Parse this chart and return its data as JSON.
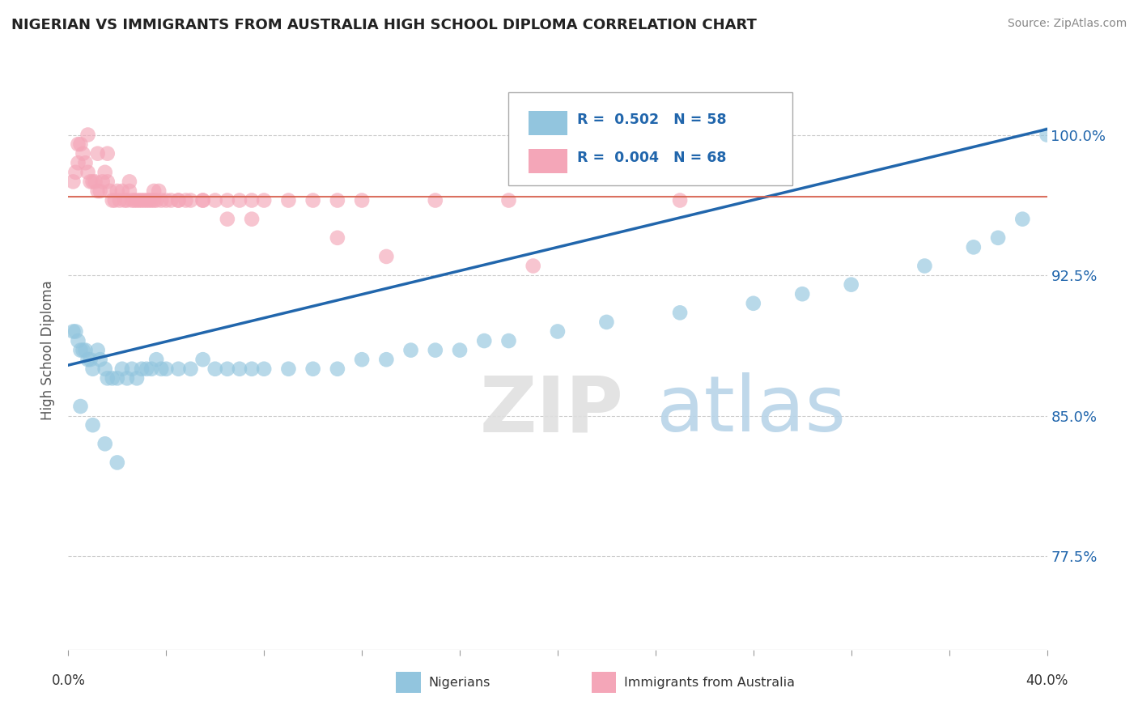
{
  "title": "NIGERIAN VS IMMIGRANTS FROM AUSTRALIA HIGH SCHOOL DIPLOMA CORRELATION CHART",
  "source": "Source: ZipAtlas.com",
  "ylabel": "High School Diploma",
  "ytick_values": [
    0.775,
    0.85,
    0.925,
    1.0
  ],
  "ytick_labels": [
    "77.5%",
    "85.0%",
    "92.5%",
    "100.0%"
  ],
  "xmin": 0.0,
  "xmax": 0.4,
  "ymin": 0.725,
  "ymax": 1.045,
  "legend_blue": "R =  0.502   N = 58",
  "legend_pink": "R =  0.004   N = 68",
  "legend_label_blue": "Nigerians",
  "legend_label_pink": "Immigrants from Australia",
  "blue_color": "#92c5de",
  "pink_color": "#f4a6b8",
  "blue_line_color": "#2166ac",
  "pink_line_color": "#d6604d",
  "watermark_zip": "ZIP",
  "watermark_atlas": "atlas",
  "nigerians_x": [
    0.002,
    0.003,
    0.004,
    0.005,
    0.006,
    0.007,
    0.008,
    0.009,
    0.01,
    0.012,
    0.013,
    0.015,
    0.016,
    0.018,
    0.02,
    0.022,
    0.024,
    0.026,
    0.028,
    0.03,
    0.032,
    0.034,
    0.036,
    0.038,
    0.04,
    0.045,
    0.05,
    0.055,
    0.06,
    0.065,
    0.07,
    0.075,
    0.08,
    0.09,
    0.1,
    0.11,
    0.12,
    0.13,
    0.14,
    0.15,
    0.16,
    0.17,
    0.18,
    0.2,
    0.22,
    0.25,
    0.28,
    0.3,
    0.32,
    0.35,
    0.37,
    0.38,
    0.39,
    0.4,
    0.005,
    0.01,
    0.015,
    0.02
  ],
  "nigerians_y": [
    0.895,
    0.895,
    0.89,
    0.885,
    0.885,
    0.885,
    0.88,
    0.88,
    0.875,
    0.885,
    0.88,
    0.875,
    0.87,
    0.87,
    0.87,
    0.875,
    0.87,
    0.875,
    0.87,
    0.875,
    0.875,
    0.875,
    0.88,
    0.875,
    0.875,
    0.875,
    0.875,
    0.88,
    0.875,
    0.875,
    0.875,
    0.875,
    0.875,
    0.875,
    0.875,
    0.875,
    0.88,
    0.88,
    0.885,
    0.885,
    0.885,
    0.89,
    0.89,
    0.895,
    0.9,
    0.905,
    0.91,
    0.915,
    0.92,
    0.93,
    0.94,
    0.945,
    0.955,
    1.0,
    0.855,
    0.845,
    0.835,
    0.825
  ],
  "australia_x": [
    0.002,
    0.003,
    0.004,
    0.005,
    0.006,
    0.007,
    0.008,
    0.009,
    0.01,
    0.011,
    0.012,
    0.013,
    0.014,
    0.015,
    0.016,
    0.017,
    0.018,
    0.019,
    0.02,
    0.021,
    0.022,
    0.023,
    0.024,
    0.025,
    0.026,
    0.027,
    0.028,
    0.029,
    0.03,
    0.031,
    0.032,
    0.033,
    0.034,
    0.035,
    0.036,
    0.037,
    0.038,
    0.04,
    0.042,
    0.045,
    0.048,
    0.05,
    0.055,
    0.06,
    0.065,
    0.07,
    0.075,
    0.08,
    0.09,
    0.1,
    0.11,
    0.12,
    0.15,
    0.18,
    0.004,
    0.008,
    0.012,
    0.016,
    0.025,
    0.035,
    0.045,
    0.055,
    0.065,
    0.075,
    0.11,
    0.13,
    0.19,
    0.25
  ],
  "australia_y": [
    0.975,
    0.98,
    0.985,
    0.995,
    0.99,
    0.985,
    0.98,
    0.975,
    0.975,
    0.975,
    0.97,
    0.97,
    0.975,
    0.98,
    0.975,
    0.97,
    0.965,
    0.965,
    0.97,
    0.965,
    0.97,
    0.965,
    0.965,
    0.97,
    0.965,
    0.965,
    0.965,
    0.965,
    0.965,
    0.965,
    0.965,
    0.965,
    0.965,
    0.965,
    0.965,
    0.97,
    0.965,
    0.965,
    0.965,
    0.965,
    0.965,
    0.965,
    0.965,
    0.965,
    0.965,
    0.965,
    0.965,
    0.965,
    0.965,
    0.965,
    0.965,
    0.965,
    0.965,
    0.965,
    0.995,
    1.0,
    0.99,
    0.99,
    0.975,
    0.97,
    0.965,
    0.965,
    0.955,
    0.955,
    0.945,
    0.935,
    0.93,
    0.965
  ]
}
